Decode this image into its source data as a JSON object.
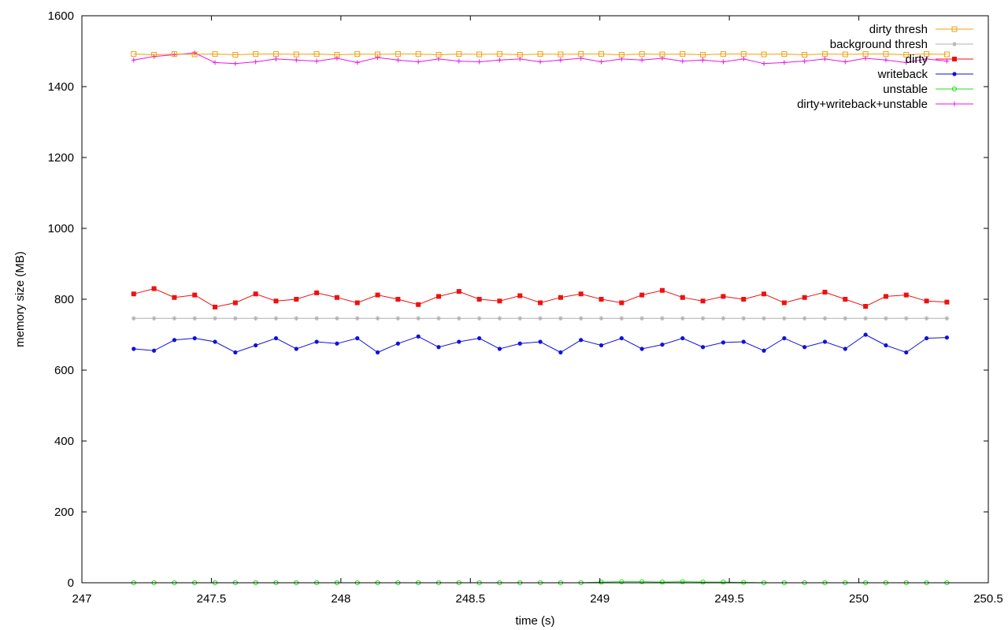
{
  "chart_data": {
    "type": "line",
    "title": "",
    "xlabel": "time (s)",
    "ylabel": "memory size (MB)",
    "xlim": [
      247,
      250.5
    ],
    "ylim": [
      0,
      1600
    ],
    "x_ticks": [
      247,
      247.5,
      248,
      248.5,
      249,
      249.5,
      250,
      250.5
    ],
    "x_tick_labels": [
      "247",
      "247.5",
      "248",
      "248.5",
      "249",
      "249.5",
      "250",
      "250.5"
    ],
    "y_ticks": [
      0,
      200,
      400,
      600,
      800,
      1000,
      1200,
      1400,
      1600
    ],
    "y_tick_labels": [
      "0",
      "200",
      "400",
      "600",
      "800",
      "1000",
      "1200",
      "1400",
      "1600"
    ],
    "grid": false,
    "legend_position": "top-right",
    "x_start": 247.2,
    "x_end": 250.34,
    "series": [
      {
        "name": "dirty thresh",
        "color": "#f0a010",
        "marker": "square-open",
        "values": [
          1492,
          1490,
          1492,
          1491,
          1492,
          1490,
          1492,
          1492,
          1491,
          1492,
          1490,
          1492,
          1491,
          1492,
          1492,
          1490,
          1492,
          1491,
          1492,
          1490,
          1492,
          1491,
          1492,
          1492,
          1490,
          1492,
          1491,
          1492,
          1490,
          1492,
          1492,
          1491,
          1492,
          1490,
          1492,
          1491,
          1492,
          1492,
          1490,
          1492,
          1491
        ]
      },
      {
        "name": "background thresh",
        "color": "#b0b0b0",
        "marker": "star",
        "values": [
          746,
          746,
          746,
          746,
          746,
          746,
          746,
          746,
          746,
          746,
          746,
          746,
          746,
          746,
          746,
          746,
          746,
          746,
          746,
          746,
          746,
          746,
          746,
          746,
          746,
          746,
          746,
          746,
          746,
          746,
          746,
          746,
          746,
          746,
          746,
          746,
          746,
          746,
          746,
          746,
          746
        ]
      },
      {
        "name": "dirty",
        "color": "#ee1111",
        "marker": "square",
        "values": [
          815,
          830,
          805,
          812,
          778,
          790,
          815,
          795,
          800,
          818,
          805,
          790,
          812,
          800,
          785,
          808,
          822,
          800,
          795,
          810,
          790,
          805,
          815,
          800,
          790,
          812,
          825,
          805,
          795,
          808,
          800,
          815,
          790,
          805,
          820,
          800,
          780,
          808,
          812,
          795,
          792
        ]
      },
      {
        "name": "writeback",
        "color": "#1010dd",
        "marker": "circle",
        "values": [
          660,
          655,
          685,
          690,
          680,
          650,
          670,
          690,
          660,
          680,
          675,
          690,
          650,
          675,
          695,
          665,
          680,
          690,
          660,
          675,
          680,
          650,
          685,
          670,
          690,
          660,
          672,
          690,
          665,
          678,
          680,
          655,
          690,
          665,
          680,
          660,
          700,
          670,
          650,
          690,
          692
        ]
      },
      {
        "name": "unstable",
        "color": "#22dd22",
        "marker": "circle-open",
        "values": [
          0,
          0,
          0,
          0,
          0,
          0,
          0,
          0,
          0,
          0,
          0,
          0,
          0,
          0,
          0,
          0,
          0,
          0,
          0,
          0,
          0,
          0,
          0,
          2,
          3,
          3,
          2,
          3,
          2,
          2,
          1,
          0,
          0,
          0,
          0,
          0,
          0,
          0,
          0,
          0,
          0
        ]
      },
      {
        "name": "dirty+writeback+unstable",
        "color": "#ee11ee",
        "marker": "plus",
        "values": [
          1475,
          1485,
          1490,
          1495,
          1468,
          1465,
          1470,
          1478,
          1475,
          1472,
          1480,
          1468,
          1482,
          1475,
          1470,
          1478,
          1472,
          1470,
          1475,
          1478,
          1470,
          1475,
          1480,
          1470,
          1478,
          1475,
          1480,
          1472,
          1475,
          1470,
          1478,
          1465,
          1468,
          1472,
          1478,
          1470,
          1480,
          1475,
          1468,
          1478,
          1472
        ]
      }
    ]
  }
}
